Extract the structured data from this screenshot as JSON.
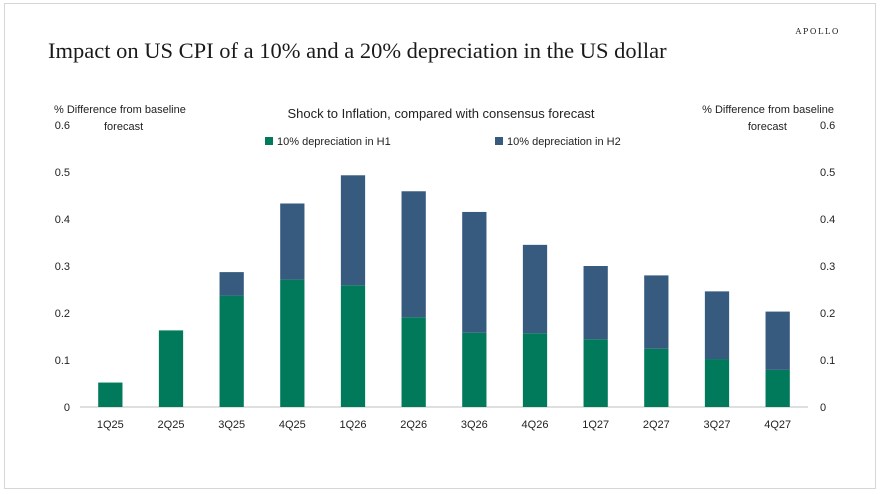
{
  "header": {
    "brand": "APOLLO",
    "title": "Impact on US CPI of a 10% and a 20% depreciation in the US dollar"
  },
  "colors": {
    "h1": "#007a5a",
    "h2": "#375a7f",
    "axis": "#bfbfbf",
    "text": "#222222"
  },
  "chart_data": {
    "type": "bar",
    "stacked": true,
    "title": "Shock to Inflation, compared with consensus forecast",
    "ylabel_left": [
      "% Difference from baseline",
      "forecast"
    ],
    "ylabel_right": [
      "% Difference from baseline",
      "forecast"
    ],
    "ylim": [
      0,
      0.6
    ],
    "yticks": [
      "0",
      "0.1",
      "0.2",
      "0.3",
      "0.4",
      "0.5",
      "0.6"
    ],
    "categories": [
      "1Q25",
      "2Q25",
      "3Q25",
      "4Q25",
      "1Q26",
      "2Q26",
      "3Q26",
      "4Q26",
      "1Q27",
      "2Q27",
      "3Q27",
      "4Q27"
    ],
    "series": [
      {
        "name": "10% depreciation in H1",
        "values": [
          0.052,
          0.163,
          0.237,
          0.271,
          0.259,
          0.191,
          0.158,
          0.157,
          0.144,
          0.124,
          0.102,
          0.079
        ]
      },
      {
        "name": "10% depreciation in H2",
        "values": [
          0,
          0,
          0.05,
          0.162,
          0.234,
          0.268,
          0.257,
          0.188,
          0.156,
          0.156,
          0.144,
          0.124
        ]
      }
    ],
    "legend_position": "top-center"
  }
}
